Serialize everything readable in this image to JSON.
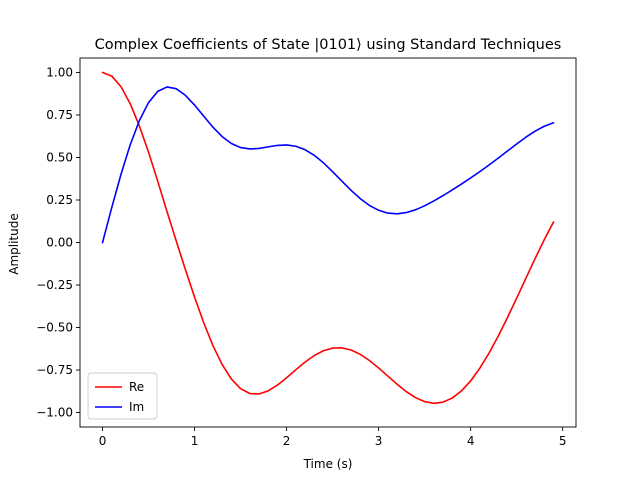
{
  "chart_data": {
    "type": "line",
    "title": "Complex Coefficients of State |0101⟩ using Standard Techniques",
    "xlabel": "Time (s)",
    "ylabel": "Amplitude",
    "xlim": [
      -0.245,
      5.145
    ],
    "ylim": [
      -1.085,
      1.085
    ],
    "xticks": [
      0,
      1,
      2,
      3,
      4,
      5
    ],
    "xtick_labels": [
      "0",
      "1",
      "2",
      "3",
      "4",
      "5"
    ],
    "yticks": [
      -1.0,
      -0.75,
      -0.5,
      -0.25,
      0.0,
      0.25,
      0.5,
      0.75,
      1.0
    ],
    "ytick_labels": [
      "−1.00",
      "−0.75",
      "−0.50",
      "−0.25",
      "0.00",
      "0.25",
      "0.50",
      "0.75",
      "1.00"
    ],
    "grid": false,
    "legend_position": "lower-left",
    "x": [
      0.0,
      0.1,
      0.2,
      0.3,
      0.4,
      0.5,
      0.6,
      0.7,
      0.8,
      0.9,
      1.0,
      1.1,
      1.2,
      1.3,
      1.4,
      1.5,
      1.6,
      1.7,
      1.8,
      1.9,
      2.0,
      2.1,
      2.2,
      2.3,
      2.4,
      2.5,
      2.6,
      2.7,
      2.8,
      2.9,
      3.0,
      3.1,
      3.2,
      3.3,
      3.4,
      3.5,
      3.6,
      3.7,
      3.8,
      3.9,
      4.0,
      4.1,
      4.2,
      4.3,
      4.4,
      4.5,
      4.6,
      4.7,
      4.8,
      4.9
    ],
    "series": [
      {
        "name": "Re",
        "color": "#ff0000",
        "values": [
          1.0,
          0.9787,
          0.9165,
          0.8169,
          0.6857,
          0.5305,
          0.3598,
          0.1831,
          0.0102,
          -0.1586,
          -0.3213,
          -0.4727,
          -0.6069,
          -0.7178,
          -0.8032,
          -0.8597,
          -0.8881,
          -0.8907,
          -0.8724,
          -0.8388,
          -0.7956,
          -0.7488,
          -0.7037,
          -0.6651,
          -0.6367,
          -0.621,
          -0.6196,
          -0.6321,
          -0.6576,
          -0.6938,
          -0.7377,
          -0.7854,
          -0.8331,
          -0.8767,
          -0.912,
          -0.9358,
          -0.9455,
          -0.9389,
          -0.9148,
          -0.8729,
          -0.8139,
          -0.7392,
          -0.6506,
          -0.5504,
          -0.4416,
          -0.3273,
          -0.2107,
          -0.0952,
          0.0163,
          0.1204
        ]
      },
      {
        "name": "Im",
        "color": "#0000ff",
        "values": [
          0.0,
          0.2053,
          0.4,
          0.5735,
          0.7167,
          0.8229,
          0.8888,
          0.9147,
          0.9045,
          0.8658,
          0.8083,
          0.7424,
          0.6779,
          0.6227,
          0.5822,
          0.5584,
          0.5501,
          0.5533,
          0.5624,
          0.5711,
          0.5737,
          0.5661,
          0.5459,
          0.5128,
          0.4687,
          0.4167,
          0.3613,
          0.307,
          0.2582,
          0.2182,
          0.1894,
          0.173,
          0.1689,
          0.1759,
          0.1923,
          0.2158,
          0.2442,
          0.2757,
          0.3091,
          0.3437,
          0.3796,
          0.4168,
          0.4557,
          0.4962,
          0.5378,
          0.5794,
          0.6191,
          0.6546,
          0.6836,
          0.7041
        ]
      }
    ]
  }
}
